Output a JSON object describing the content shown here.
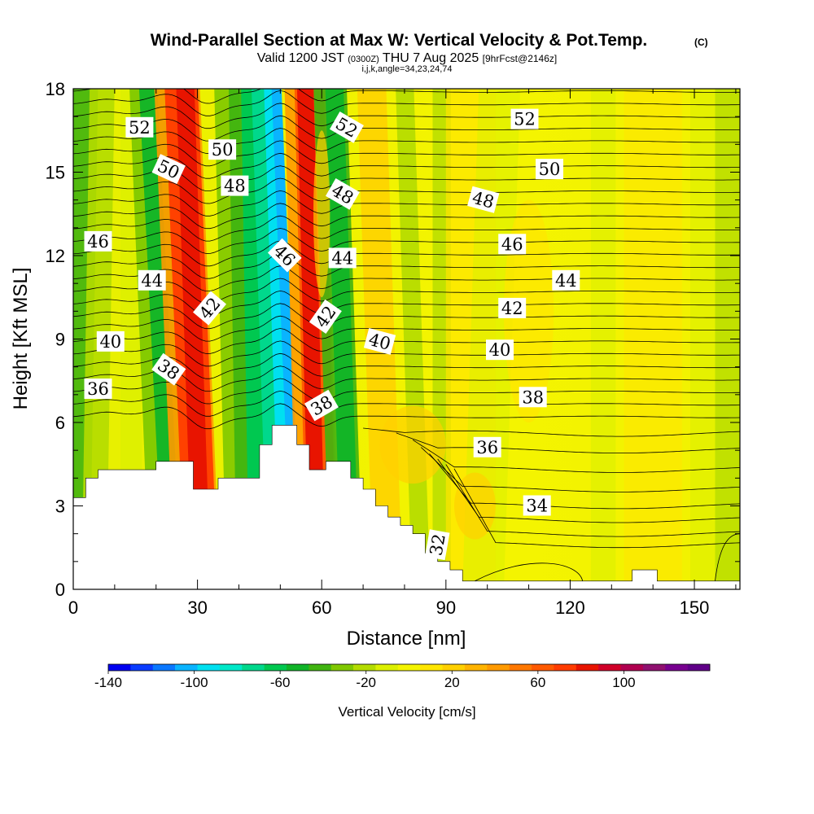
{
  "chart_data": {
    "type": "heatmap",
    "title": "Wind-Parallel Section at Max W: Vertical Velocity & Pot.Temp.",
    "title_mark": "(C)",
    "subtitle": {
      "valid": "Valid 1200 JST",
      "utc": "(0300Z)",
      "date": "THU 7 Aug 2025",
      "fcst": "[9hrFcst@2146z]",
      "indices": "i,j,k,angle=34,23,24,74"
    },
    "xlabel": "Distance [nm]",
    "ylabel": "Height [Kft MSL]",
    "xlim": [
      0,
      161
    ],
    "ylim": [
      0,
      18
    ],
    "x_ticks": [
      0,
      30,
      60,
      90,
      120,
      150
    ],
    "y_ticks": [
      0,
      3,
      6,
      9,
      12,
      15,
      18
    ],
    "colorbar": {
      "label": "Vertical Velocity [cm/s]",
      "ticks": [
        -140,
        -100,
        -60,
        -20,
        20,
        60,
        100
      ],
      "min": -140,
      "max": 140,
      "colors": [
        "#0000f0",
        "#0a3cff",
        "#0a78ff",
        "#0ab4ff",
        "#00e0f0",
        "#00e8c8",
        "#00d88c",
        "#00c850",
        "#10b428",
        "#40b410",
        "#80c800",
        "#b4dc00",
        "#dcf000",
        "#f4f400",
        "#ffe600",
        "#ffd000",
        "#ffb400",
        "#ff9a00",
        "#ff7800",
        "#ff5a00",
        "#ff3c00",
        "#e81400",
        "#d00028",
        "#b00050",
        "#901070",
        "#780090",
        "#600088"
      ]
    },
    "contours": {
      "variable": "Potential temperature",
      "labels": [
        {
          "x": 16,
          "z": 16.6,
          "v": "52"
        },
        {
          "x": 36,
          "z": 15.8,
          "v": "50"
        },
        {
          "x": 23,
          "z": 15.1,
          "v": "50"
        },
        {
          "x": 39,
          "z": 14.5,
          "v": "48"
        },
        {
          "x": 6,
          "z": 12.5,
          "v": "46"
        },
        {
          "x": 19,
          "z": 11.1,
          "v": "44"
        },
        {
          "x": 33,
          "z": 10.1,
          "v": "42"
        },
        {
          "x": 9,
          "z": 8.9,
          "v": "40"
        },
        {
          "x": 23,
          "z": 7.9,
          "v": "38"
        },
        {
          "x": 6,
          "z": 7.2,
          "v": "36"
        },
        {
          "x": 66,
          "z": 16.6,
          "v": "52"
        },
        {
          "x": 65,
          "z": 14.2,
          "v": "48"
        },
        {
          "x": 51,
          "z": 12.0,
          "v": "46"
        },
        {
          "x": 65,
          "z": 11.9,
          "v": "44"
        },
        {
          "x": 61,
          "z": 9.8,
          "v": "42"
        },
        {
          "x": 74,
          "z": 8.9,
          "v": "40"
        },
        {
          "x": 60,
          "z": 6.6,
          "v": "38"
        },
        {
          "x": 109,
          "z": 16.9,
          "v": "52"
        },
        {
          "x": 115,
          "z": 15.1,
          "v": "50"
        },
        {
          "x": 99,
          "z": 14.0,
          "v": "48"
        },
        {
          "x": 106,
          "z": 12.4,
          "v": "46"
        },
        {
          "x": 119,
          "z": 11.1,
          "v": "44"
        },
        {
          "x": 106,
          "z": 10.1,
          "v": "42"
        },
        {
          "x": 103,
          "z": 8.6,
          "v": "40"
        },
        {
          "x": 111,
          "z": 6.9,
          "v": "38"
        },
        {
          "x": 100,
          "z": 5.1,
          "v": "36"
        },
        {
          "x": 112,
          "z": 3.0,
          "v": "34"
        },
        {
          "x": 88,
          "z": 1.6,
          "v": "32"
        }
      ]
    },
    "terrain_kft": [
      [
        0,
        3.3
      ],
      [
        3,
        3.3
      ],
      [
        3,
        4.0
      ],
      [
        6,
        4.0
      ],
      [
        6,
        4.3
      ],
      [
        20,
        4.3
      ],
      [
        20,
        4.6
      ],
      [
        29,
        4.6
      ],
      [
        29,
        3.6
      ],
      [
        35,
        3.6
      ],
      [
        35,
        4.0
      ],
      [
        45,
        4.0
      ],
      [
        45,
        5.2
      ],
      [
        48,
        5.2
      ],
      [
        48,
        5.9
      ],
      [
        54,
        5.9
      ],
      [
        54,
        5.2
      ],
      [
        57,
        5.2
      ],
      [
        57,
        4.3
      ],
      [
        61,
        4.3
      ],
      [
        61,
        4.6
      ],
      [
        67,
        4.6
      ],
      [
        67,
        4.0
      ],
      [
        70,
        4.0
      ],
      [
        70,
        3.6
      ],
      [
        73,
        3.6
      ],
      [
        73,
        3.0
      ],
      [
        76,
        3.0
      ],
      [
        76,
        2.6
      ],
      [
        79,
        2.6
      ],
      [
        79,
        2.3
      ],
      [
        82,
        2.3
      ],
      [
        82,
        2.0
      ],
      [
        85,
        2.0
      ],
      [
        85,
        1.3
      ],
      [
        88,
        1.3
      ],
      [
        88,
        1.0
      ],
      [
        91,
        1.0
      ],
      [
        91,
        0.7
      ],
      [
        94,
        0.7
      ],
      [
        94,
        0.3
      ],
      [
        135,
        0.3
      ],
      [
        135,
        0.7
      ],
      [
        141,
        0.7
      ],
      [
        141,
        0.3
      ],
      [
        161,
        0.3
      ]
    ]
  }
}
